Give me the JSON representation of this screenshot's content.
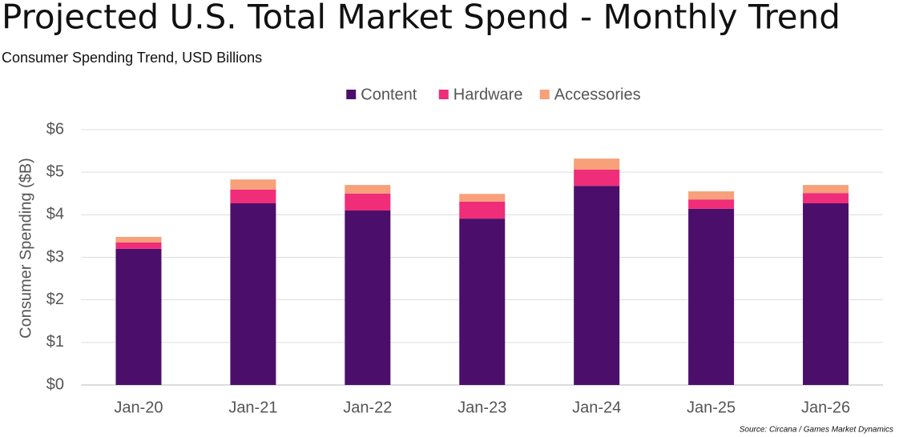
{
  "chart_data": {
    "type": "stacked_bar",
    "title": "Projected U.S. Total Market Spend - Monthly Trend",
    "subtitle": "Consumer Spending Trend, USD Billions",
    "y_label": "Consumer Spending ($B)",
    "source": "Source: Circana / Games Market Dynamics",
    "categories": [
      "Jan-20",
      "Jan-21",
      "Jan-22",
      "Jan-23",
      "Jan-24",
      "Jan-25",
      "Jan-26"
    ],
    "series": [
      {
        "name": "Content",
        "color": "#4b0f6b",
        "values": [
          3.2,
          4.27,
          4.1,
          3.91,
          4.68,
          4.14,
          4.27
        ]
      },
      {
        "name": "Hardware",
        "color": "#ef2d79",
        "values": [
          0.15,
          0.32,
          0.4,
          0.4,
          0.38,
          0.22,
          0.24
        ]
      },
      {
        "name": "Accessories",
        "color": "#f7a07a",
        "values": [
          0.13,
          0.24,
          0.2,
          0.18,
          0.26,
          0.19,
          0.19
        ]
      }
    ],
    "ylim": [
      0,
      6
    ],
    "yticks": [
      {
        "value": 0,
        "label": "$0"
      },
      {
        "value": 1,
        "label": "$1"
      },
      {
        "value": 2,
        "label": "$2"
      },
      {
        "value": 3,
        "label": "$3"
      },
      {
        "value": 4,
        "label": "$4"
      },
      {
        "value": 5,
        "label": "$5"
      },
      {
        "value": 6,
        "label": "$6"
      }
    ],
    "grid": true,
    "legend": "top"
  }
}
